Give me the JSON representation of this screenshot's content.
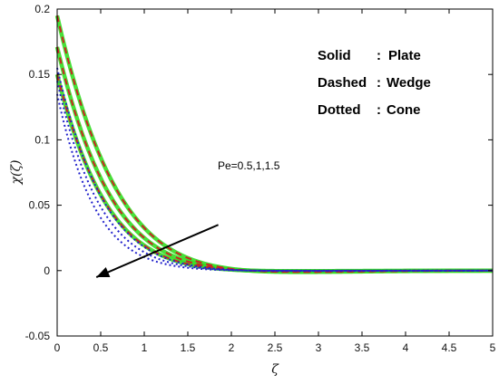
{
  "chart_data": {
    "type": "line",
    "xlabel": "ζ",
    "ylabel": "χ(ζ)",
    "xlim": [
      0,
      5
    ],
    "ylim": [
      -0.05,
      0.2
    ],
    "xticks": [
      "0",
      "0.5",
      "1",
      "1.5",
      "2",
      "2.5",
      "3",
      "3.5",
      "4",
      "4.5",
      "5"
    ],
    "yticks": [
      "-0.05",
      "0",
      "0.05",
      "0.1",
      "0.15",
      "0.2"
    ],
    "grid": false,
    "legend": {
      "position": "top-right",
      "entries": [
        {
          "style": "Solid",
          "sep": ":",
          "label": "Plate"
        },
        {
          "style": "Dashed",
          "sep": ":",
          "label": "Wedge"
        },
        {
          "style": "Dotted",
          "sep": ":",
          "label": "Cone"
        }
      ]
    },
    "annotation": {
      "text": "Pe=0.5,1,1.5",
      "arrow_from": [
        1.85,
        0.035
      ],
      "arrow_to": [
        0.45,
        -0.005
      ]
    },
    "colors": {
      "plate": "#33dd22",
      "wedge": "#cc2222",
      "cone": "#2222cc"
    },
    "series": [
      {
        "group": "plate",
        "pe": "0.5",
        "y0": 0.195,
        "k": 1.55,
        "w": 0.75,
        "b": 0.085
      },
      {
        "group": "plate",
        "pe": "1",
        "y0": 0.171,
        "k": 1.7,
        "w": 0.75,
        "b": 0.1
      },
      {
        "group": "plate",
        "pe": "1.5",
        "y0": 0.15,
        "k": 1.85,
        "w": 0.75,
        "b": 0.12
      },
      {
        "group": "wedge",
        "pe": "0.5",
        "y0": 0.195,
        "k": 1.55,
        "w": 0.75,
        "b": 0.085
      },
      {
        "group": "wedge",
        "pe": "1",
        "y0": 0.171,
        "k": 1.7,
        "w": 0.75,
        "b": 0.1
      },
      {
        "group": "wedge",
        "pe": "1.5",
        "y0": 0.15,
        "k": 1.85,
        "w": 0.75,
        "b": 0.12
      },
      {
        "group": "cone",
        "pe": "0.5",
        "y0": 0.155,
        "k": 1.95,
        "w": 0.75,
        "b": 0.13
      },
      {
        "group": "cone",
        "pe": "1",
        "y0": 0.145,
        "k": 2.15,
        "w": 0.75,
        "b": 0.15
      },
      {
        "group": "cone",
        "pe": "1.5",
        "y0": 0.135,
        "k": 2.4,
        "w": 0.75,
        "b": 0.17
      }
    ]
  }
}
